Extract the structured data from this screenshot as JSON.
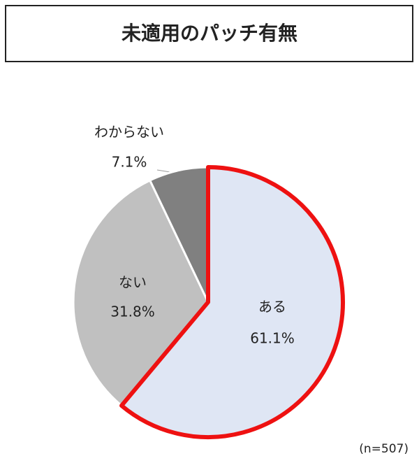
{
  "chart_data": {
    "type": "pie",
    "title": "未適用のパッチ有無",
    "categories": [
      "ある",
      "ない",
      "わからない"
    ],
    "values": [
      61.1,
      31.8,
      7.1
    ],
    "value_labels": [
      "61.1%",
      "31.8%",
      "7.1%"
    ],
    "colors": [
      "#dfe6f4",
      "#c0c0c0",
      "#808080"
    ],
    "edgecolors": [
      "#ee1111",
      "#ffffff",
      "#ffffff"
    ],
    "note": "(n=507)"
  }
}
